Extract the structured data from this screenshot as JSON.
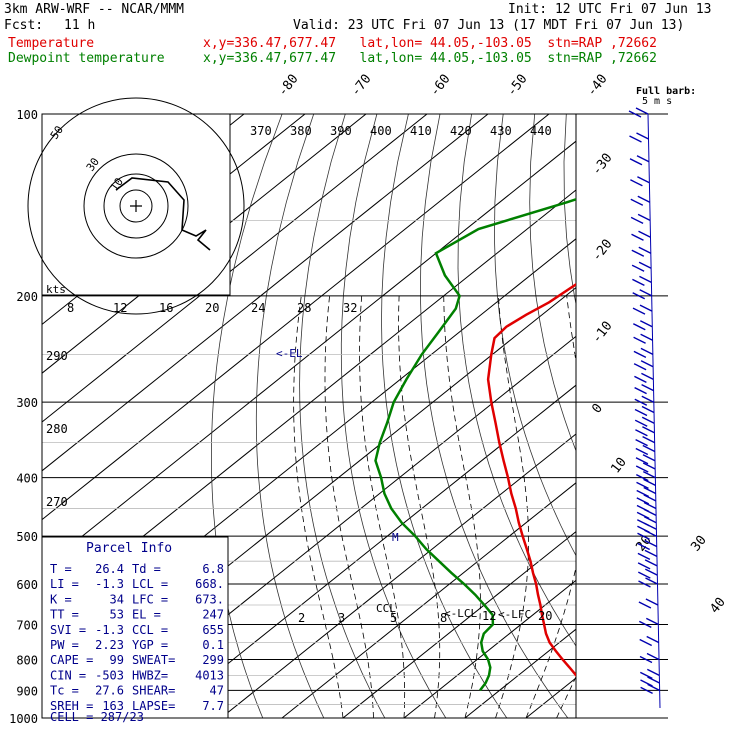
{
  "header": {
    "model": "3km ARW-WRF -- NCAR/MMM",
    "init": "Init: 12 UTC Fri 07 Jun 13",
    "fcst_label": "Fcst:",
    "fcst_hours": "11 h",
    "valid": "Valid: 23 UTC Fri 07 Jun 13 (17 MDT Fri 07 Jun 13)",
    "temp_label": "Temperature",
    "temp_loc": "x,y=336.47,677.47   lat,lon= 44.05,-103.05  stn=RAP ,72662",
    "dew_label": "Dewpoint temperature",
    "dew_loc": "x,y=336.47,677.47   lat,lon= 44.05,-103.05  stn=RAP ,72662"
  },
  "colors": {
    "temperature": "#e00000",
    "dewpoint": "#008000",
    "wind": "#0000b0",
    "labels": "#00008b"
  },
  "chart_data": {
    "type": "line",
    "pressure_ticks": [
      100,
      200,
      300,
      400,
      500,
      600,
      700,
      800,
      900,
      1000
    ],
    "pressure_lines": [
      100,
      150,
      200,
      250,
      300,
      350,
      400,
      450,
      500,
      550,
      600,
      650,
      700,
      750,
      800,
      850,
      900,
      950,
      1000
    ],
    "isotherm_labels": [
      "-80",
      "-70",
      "-60",
      "-50",
      "-40",
      "-30",
      "-20",
      "-10",
      "0",
      "10",
      "20",
      "30",
      "40"
    ],
    "theta_e_labels": [
      "370",
      "380",
      "390",
      "400",
      "410",
      "420",
      "430",
      "440"
    ],
    "theta_labels": [
      "290",
      "280",
      "270"
    ],
    "mixing_ratio_labels": [
      "2",
      "3",
      "5",
      "8",
      "12",
      "20"
    ],
    "hodograph": {
      "units": "kts",
      "ring_labels": [
        "10",
        "30",
        "50"
      ],
      "speed_labels": [
        "8",
        "12",
        "16",
        "20",
        "24",
        "28",
        "32"
      ]
    },
    "series": [
      {
        "name": "Temperature",
        "pressure": [
          900,
          875,
          850,
          825,
          800,
          775,
          750,
          725,
          700,
          675,
          650,
          625,
          600,
          575,
          550,
          525,
          500,
          475,
          450,
          425,
          400,
          375,
          350,
          325,
          300,
          275,
          250,
          235,
          225,
          215,
          205,
          190,
          175,
          160,
          150,
          140,
          130,
          120,
          110,
          100
        ],
        "values": [
          26.4,
          22.8,
          19.5,
          16.8,
          14.0,
          11.2,
          8.4,
          6.0,
          3.8,
          1.5,
          -0.8,
          -3.3,
          -5.8,
          -8.6,
          -11.4,
          -14.5,
          -17.8,
          -21.2,
          -24.6,
          -28.4,
          -32.2,
          -36.4,
          -40.8,
          -45.4,
          -50.4,
          -55.6,
          -60.2,
          -63.0,
          -63.4,
          -62.6,
          -61.4,
          -60.6,
          -60.2,
          -59.8,
          -59.4,
          -59.0,
          -58.6,
          -58.2,
          -57.6,
          -57.0
        ]
      },
      {
        "name": "Dewpoint temperature",
        "pressure": [
          900,
          875,
          850,
          825,
          800,
          775,
          750,
          725,
          700,
          675,
          650,
          625,
          600,
          575,
          550,
          525,
          500,
          475,
          450,
          425,
          400,
          375,
          350,
          325,
          300,
          275,
          250,
          230,
          210,
          200,
          185,
          170,
          155,
          140,
          130,
          120,
          110,
          100
        ],
        "values": [
          6.8,
          6.2,
          5.2,
          3.8,
          1.8,
          -0.8,
          -2.8,
          -4.2,
          -4.6,
          -6.6,
          -10.0,
          -13.6,
          -17.6,
          -22.0,
          -26.4,
          -31.0,
          -35.4,
          -40.4,
          -45.0,
          -49.2,
          -53.0,
          -57.4,
          -60.4,
          -63.2,
          -66.4,
          -69.0,
          -71.6,
          -73.4,
          -75.4,
          -77.4,
          -84.0,
          -90.0,
          -88.0,
          -79.0,
          -73.0,
          -69.0,
          -66.0,
          -62.0
        ]
      }
    ],
    "annotations": [
      "<-EL",
      "M",
      "CCL",
      "<-LCL",
      "<-LFC"
    ]
  },
  "wind_barbs": {
    "title": "Full barb:",
    "units": "5 m s",
    "pressures": [
      100,
      110,
      120,
      130,
      140,
      150,
      160,
      170,
      180,
      190,
      200,
      212,
      225,
      237,
      250,
      262,
      275,
      287,
      300,
      312,
      325,
      337,
      350,
      362,
      375,
      387,
      400,
      412,
      425,
      437,
      450,
      462,
      475,
      487,
      500,
      520,
      540,
      560,
      580,
      600,
      650,
      700,
      750,
      800,
      850,
      875,
      900
    ]
  },
  "parcel_info": {
    "title": "Parcel Info",
    "rows": [
      {
        "l1": "T  =",
        "v1": "26.4",
        "l2": "Td =",
        "v2": "6.8"
      },
      {
        "l1": "LI =",
        "v1": "-1.3",
        "l2": "LCL =",
        "v2": "668."
      },
      {
        "l1": "K  =",
        "v1": "34",
        "l2": "LFC =",
        "v2": "673."
      },
      {
        "l1": "TT =",
        "v1": "53",
        "l2": "EL =",
        "v2": "247"
      },
      {
        "l1": "SVI =",
        "v1": "-1.3",
        "l2": "CCL =",
        "v2": "655"
      },
      {
        "l1": "PW =",
        "v1": "2.23",
        "l2": "YGP =",
        "v2": "0.1"
      },
      {
        "l1": "CAPE =",
        "v1": "99",
        "l2": "SWEAT=",
        "v2": "299"
      },
      {
        "l1": "CIN =",
        "v1": "-503",
        "l2": "HWBZ=",
        "v2": "4013"
      },
      {
        "l1": "Tc =",
        "v1": "27.6",
        "l2": "SHEAR=",
        "v2": "47"
      },
      {
        "l1": "SREH =",
        "v1": "163",
        "l2": "LAPSE=",
        "v2": "7.7"
      }
    ],
    "cell": "CELL = 287/23"
  }
}
